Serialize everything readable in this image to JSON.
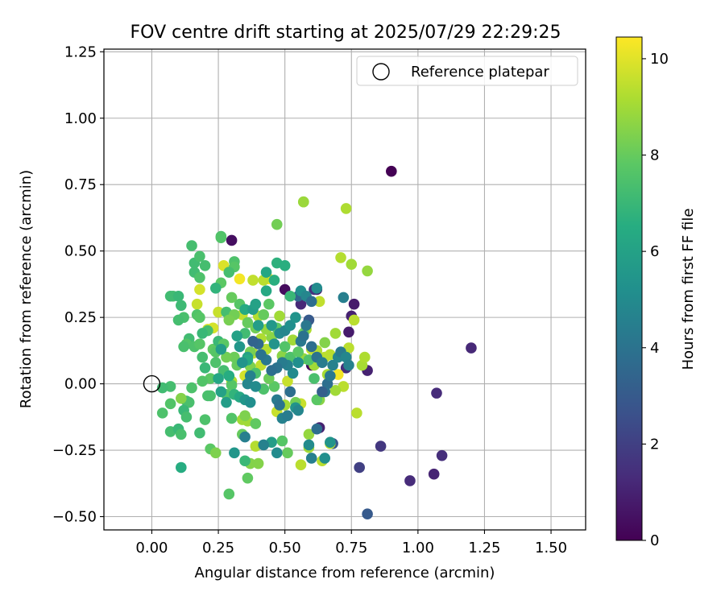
{
  "chart_data": {
    "type": "scatter",
    "title": "FOV centre drift starting at 2025/07/29 22:29:25",
    "xlabel": "Angular distance from reference (arcmin)",
    "ylabel": "Rotation from reference (arcmin)",
    "xlim": [
      -0.18,
      1.63
    ],
    "ylim": [
      -0.55,
      1.26
    ],
    "xticks": [
      0.0,
      0.25,
      0.5,
      0.75,
      1.0,
      1.25,
      1.5
    ],
    "xtick_labels": [
      "0.00",
      "0.25",
      "0.50",
      "0.75",
      "1.00",
      "1.25",
      "1.50"
    ],
    "yticks": [
      -0.5,
      -0.25,
      0.0,
      0.25,
      0.5,
      0.75,
      1.0,
      1.25
    ],
    "ytick_labels": [
      "−0.50",
      "−0.25",
      "0.00",
      "0.25",
      "0.50",
      "0.75",
      "1.00",
      "1.25"
    ],
    "grid": true,
    "legend": {
      "position": "top-right",
      "entries": [
        "Reference platepar"
      ]
    },
    "reference_point": {
      "x": 0.0,
      "y": 0.0,
      "marker": "open-circle"
    },
    "colorbar": {
      "label": "Hours from first FF file",
      "range": [
        0,
        10.45
      ],
      "ticks": [
        0,
        2,
        4,
        6,
        8,
        10
      ],
      "tick_labels": [
        "0",
        "2",
        "4",
        "6",
        "8",
        "10"
      ],
      "colormap": "viridis"
    },
    "points": [
      [
        1.2,
        0.135,
        1.2
      ],
      [
        1.07,
        -0.035,
        1.3
      ],
      [
        1.09,
        -0.27,
        1.4
      ],
      [
        1.06,
        -0.34,
        1.1
      ],
      [
        0.97,
        -0.365,
        1.3
      ],
      [
        0.86,
        -0.235,
        1.7
      ],
      [
        0.81,
        -0.49,
        3.0
      ],
      [
        0.78,
        -0.315,
        2.0
      ],
      [
        0.81,
        0.05,
        1.0
      ],
      [
        0.76,
        0.3,
        0.8
      ],
      [
        0.75,
        0.255,
        1.0
      ],
      [
        0.74,
        0.195,
        0.8
      ],
      [
        0.73,
        0.06,
        1.4
      ],
      [
        0.72,
        0.325,
        4.5
      ],
      [
        0.68,
        -0.225,
        3.0
      ],
      [
        0.63,
        -0.165,
        1.0
      ],
      [
        0.62,
        0.355,
        0.8
      ],
      [
        0.61,
        0.355,
        1.5
      ],
      [
        0.56,
        0.3,
        1.2
      ],
      [
        0.5,
        0.355,
        0.3
      ],
      [
        0.3,
        0.54,
        0.4
      ],
      [
        0.6,
        0.07,
        0.3
      ],
      [
        0.55,
        0.33,
        3.5
      ],
      [
        0.59,
        0.24,
        3.0
      ],
      [
        0.9,
        0.8,
        0.0
      ],
      [
        0.57,
        0.685,
        8.8
      ],
      [
        0.73,
        0.66,
        9.2
      ],
      [
        0.47,
        0.6,
        8.2
      ],
      [
        0.71,
        0.475,
        9.3
      ],
      [
        0.75,
        0.45,
        9.0
      ],
      [
        0.81,
        0.425,
        8.8
      ],
      [
        0.33,
        0.395,
        10.3
      ],
      [
        0.44,
        0.395,
        10.4
      ],
      [
        0.38,
        0.39,
        9.5
      ],
      [
        0.63,
        0.31,
        9.5
      ],
      [
        0.27,
        0.445,
        9.9
      ],
      [
        0.25,
        0.27,
        9.6
      ],
      [
        0.29,
        0.255,
        9.6
      ],
      [
        0.23,
        0.21,
        9.8
      ],
      [
        0.17,
        0.3,
        9.6
      ],
      [
        0.18,
        0.355,
        9.8
      ],
      [
        0.34,
        0.26,
        9.5
      ],
      [
        0.35,
        0.03,
        9.8
      ],
      [
        0.4,
        0.255,
        9.3
      ],
      [
        0.45,
        0.175,
        8.6
      ],
      [
        0.48,
        0.255,
        9.0
      ],
      [
        0.58,
        0.205,
        9.2
      ],
      [
        0.61,
        0.07,
        9.0
      ],
      [
        0.65,
        0.1,
        9.4
      ],
      [
        0.7,
        0.035,
        10.3
      ],
      [
        0.72,
        -0.01,
        9.4
      ],
      [
        0.74,
        0.135,
        9.4
      ],
      [
        0.76,
        0.24,
        9.4
      ],
      [
        0.79,
        0.07,
        9.1
      ],
      [
        0.8,
        0.1,
        9.2
      ],
      [
        0.77,
        -0.11,
        9.4
      ],
      [
        0.69,
        -0.025,
        9.0
      ],
      [
        0.66,
        0.035,
        9.1
      ],
      [
        0.47,
        -0.105,
        9.6
      ],
      [
        0.56,
        -0.075,
        9.6
      ],
      [
        0.51,
        0.01,
        9.6
      ],
      [
        0.59,
        -0.19,
        8.8
      ],
      [
        0.59,
        -0.24,
        9.0
      ],
      [
        0.56,
        -0.305,
        9.4
      ],
      [
        0.64,
        -0.29,
        9.4
      ],
      [
        0.67,
        -0.225,
        9.5
      ],
      [
        0.63,
        -0.06,
        8.6
      ],
      [
        0.62,
        0.125,
        9.2
      ],
      [
        0.65,
        0.155,
        8.5
      ],
      [
        0.69,
        0.19,
        9.0
      ],
      [
        0.43,
        0.13,
        9.3
      ],
      [
        0.41,
        0.17,
        9.2
      ],
      [
        0.41,
        0.07,
        9.5
      ],
      [
        0.38,
        0.115,
        9.4
      ],
      [
        0.39,
        -0.235,
        9.3
      ],
      [
        0.36,
        -0.14,
        9.0
      ],
      [
        0.34,
        -0.135,
        9.0
      ],
      [
        0.3,
        0.01,
        9.2
      ],
      [
        0.37,
        0.065,
        8.4
      ],
      [
        0.43,
        0.205,
        8.8
      ],
      [
        0.21,
        0.205,
        9.8
      ],
      [
        0.49,
        0.105,
        8.6
      ],
      [
        0.53,
        0.165,
        9.0
      ],
      [
        0.57,
        0.095,
        8.8
      ],
      [
        0.6,
        0.13,
        9.5
      ],
      [
        0.67,
        0.11,
        9.4
      ],
      [
        0.5,
        -0.08,
        9.1
      ],
      [
        0.37,
        -0.3,
        8.5
      ],
      [
        0.4,
        -0.3,
        8.5
      ],
      [
        0.42,
        0.39,
        9.4
      ],
      [
        0.15,
        0.52,
        7.3
      ],
      [
        0.26,
        0.555,
        7.5
      ],
      [
        0.16,
        0.455,
        7.2
      ],
      [
        0.18,
        0.48,
        7.4
      ],
      [
        0.2,
        0.445,
        7.3
      ],
      [
        0.16,
        0.42,
        7.2
      ],
      [
        0.18,
        0.4,
        7.5
      ],
      [
        0.31,
        0.46,
        7.5
      ],
      [
        0.31,
        0.44,
        7.7
      ],
      [
        0.29,
        0.42,
        7.3
      ],
      [
        0.26,
        0.38,
        7.8
      ],
      [
        0.26,
        0.55,
        7.6
      ],
      [
        0.08,
        0.33,
        7.4
      ],
      [
        0.07,
        0.33,
        7.2
      ],
      [
        0.1,
        0.33,
        7.0
      ],
      [
        0.11,
        0.295,
        7.1
      ],
      [
        0.12,
        0.25,
        7.4
      ],
      [
        0.1,
        0.24,
        7.3
      ],
      [
        0.17,
        0.26,
        7.6
      ],
      [
        0.18,
        0.25,
        7.7
      ],
      [
        0.21,
        0.2,
        7.3
      ],
      [
        0.19,
        0.19,
        7.0
      ],
      [
        0.14,
        0.17,
        7.2
      ],
      [
        0.13,
        0.15,
        7.6
      ],
      [
        0.12,
        0.14,
        7.4
      ],
      [
        0.16,
        0.14,
        7.5
      ],
      [
        0.18,
        0.15,
        7.7
      ],
      [
        0.23,
        0.13,
        7.9
      ],
      [
        0.24,
        0.12,
        7.7
      ],
      [
        0.19,
        0.1,
        7.3
      ],
      [
        0.2,
        0.06,
        7.0
      ],
      [
        0.24,
        0.08,
        7.5
      ],
      [
        0.27,
        0.05,
        7.3
      ],
      [
        0.22,
        0.02,
        7.8
      ],
      [
        0.19,
        0.01,
        7.6
      ],
      [
        0.15,
        -0.015,
        7.5
      ],
      [
        0.07,
        -0.01,
        7.3
      ],
      [
        0.04,
        -0.015,
        7.2
      ],
      [
        0.21,
        -0.045,
        7.4
      ],
      [
        0.22,
        -0.045,
        7.4
      ],
      [
        0.28,
        -0.04,
        7.6
      ],
      [
        0.07,
        -0.075,
        7.6
      ],
      [
        0.13,
        -0.065,
        7.2
      ],
      [
        0.14,
        -0.07,
        7.4
      ],
      [
        0.11,
        -0.055,
        8.5
      ],
      [
        0.04,
        -0.11,
        7.5
      ],
      [
        0.12,
        -0.1,
        7.0
      ],
      [
        0.13,
        -0.125,
        7.3
      ],
      [
        0.2,
        -0.135,
        7.5
      ],
      [
        0.3,
        -0.13,
        7.6
      ],
      [
        0.35,
        -0.12,
        8.4
      ],
      [
        0.39,
        -0.15,
        7.9
      ],
      [
        0.07,
        -0.18,
        7.3
      ],
      [
        0.1,
        -0.17,
        7.0
      ],
      [
        0.11,
        -0.19,
        7.4
      ],
      [
        0.18,
        -0.185,
        7.2
      ],
      [
        0.22,
        -0.245,
        7.8
      ],
      [
        0.24,
        -0.26,
        8.4
      ],
      [
        0.34,
        -0.19,
        8.0
      ],
      [
        0.35,
        -0.29,
        7.0
      ],
      [
        0.36,
        -0.355,
        7.9
      ],
      [
        0.29,
        -0.415,
        7.7
      ],
      [
        0.11,
        -0.315,
        6.5
      ],
      [
        0.49,
        -0.215,
        7.7
      ],
      [
        0.51,
        -0.26,
        8.0
      ],
      [
        0.47,
        0.455,
        6.7
      ],
      [
        0.5,
        0.445,
        6.6
      ],
      [
        0.46,
        0.39,
        6.6
      ],
      [
        0.57,
        0.685,
        8.9
      ],
      [
        0.28,
        0.27,
        7.3
      ],
      [
        0.33,
        0.3,
        7.7
      ],
      [
        0.3,
        0.325,
        8.0
      ],
      [
        0.31,
        0.26,
        8.2
      ],
      [
        0.29,
        0.24,
        8.3
      ],
      [
        0.36,
        0.23,
        8.0
      ],
      [
        0.39,
        0.21,
        8.2
      ],
      [
        0.37,
        0.12,
        8.3
      ],
      [
        0.31,
        0.1,
        8.1
      ],
      [
        0.32,
        0.07,
        8.0
      ],
      [
        0.28,
        0.1,
        8.2
      ],
      [
        0.25,
        0.16,
        7.0
      ],
      [
        0.27,
        0.15,
        7.8
      ],
      [
        0.35,
        0.19,
        7.2
      ],
      [
        0.42,
        0.26,
        8.0
      ],
      [
        0.44,
        0.3,
        7.8
      ],
      [
        0.52,
        0.33,
        7.0
      ],
      [
        0.47,
        0.21,
        7.8
      ],
      [
        0.5,
        0.14,
        7.6
      ],
      [
        0.52,
        0.1,
        7.5
      ],
      [
        0.55,
        0.12,
        7.8
      ],
      [
        0.57,
        0.19,
        8.0
      ],
      [
        0.59,
        0.09,
        7.5
      ],
      [
        0.61,
        0.02,
        7.4
      ],
      [
        0.62,
        -0.06,
        7.8
      ],
      [
        0.54,
        -0.07,
        8.2
      ],
      [
        0.46,
        -0.01,
        7.8
      ],
      [
        0.44,
        0.02,
        8.1
      ],
      [
        0.42,
        -0.02,
        7.5
      ],
      [
        0.39,
        0.04,
        7.4
      ],
      [
        0.3,
        -0.005,
        7.7
      ],
      [
        0.31,
        -0.04,
        6.8
      ],
      [
        0.29,
        0.03,
        6.5
      ],
      [
        0.33,
        -0.05,
        6.3
      ],
      [
        0.35,
        -0.06,
        5.5
      ],
      [
        0.37,
        -0.07,
        5.2
      ],
      [
        0.36,
        0.1,
        6.0
      ],
      [
        0.36,
        0.09,
        6.4
      ],
      [
        0.34,
        0.08,
        5.4
      ],
      [
        0.32,
        0.18,
        6.0
      ],
      [
        0.33,
        0.14,
        5.5
      ],
      [
        0.35,
        0.28,
        6.4
      ],
      [
        0.38,
        0.28,
        5.8
      ],
      [
        0.39,
        0.3,
        6.0
      ],
      [
        0.43,
        0.35,
        6.3
      ],
      [
        0.4,
        0.22,
        5.8
      ],
      [
        0.45,
        0.22,
        5.6
      ],
      [
        0.46,
        0.15,
        5.4
      ],
      [
        0.48,
        0.19,
        5.0
      ],
      [
        0.5,
        0.2,
        4.8
      ],
      [
        0.52,
        0.22,
        5.2
      ],
      [
        0.54,
        0.25,
        5.4
      ],
      [
        0.56,
        0.35,
        5.2
      ],
      [
        0.58,
        0.33,
        4.8
      ],
      [
        0.6,
        0.31,
        3.8
      ],
      [
        0.62,
        0.36,
        5.0
      ],
      [
        0.55,
        0.08,
        5.2
      ],
      [
        0.53,
        0.04,
        5.0
      ],
      [
        0.51,
        0.07,
        4.6
      ],
      [
        0.49,
        0.08,
        4.4
      ],
      [
        0.47,
        0.06,
        4.0
      ],
      [
        0.45,
        0.05,
        3.8
      ],
      [
        0.43,
        0.09,
        4.2
      ],
      [
        0.41,
        0.11,
        4.0
      ],
      [
        0.4,
        0.15,
        3.6
      ],
      [
        0.38,
        0.16,
        3.4
      ],
      [
        0.37,
        0.03,
        4.6
      ],
      [
        0.36,
        0.0,
        4.8
      ],
      [
        0.39,
        -0.01,
        5.0
      ],
      [
        0.47,
        -0.06,
        4.4
      ],
      [
        0.48,
        -0.08,
        4.0
      ],
      [
        0.49,
        -0.13,
        4.6
      ],
      [
        0.51,
        -0.12,
        4.4
      ],
      [
        0.52,
        -0.03,
        3.8
      ],
      [
        0.54,
        -0.09,
        5.4
      ],
      [
        0.55,
        -0.1,
        4.8
      ],
      [
        0.56,
        0.16,
        4.2
      ],
      [
        0.57,
        0.18,
        3.9
      ],
      [
        0.58,
        0.22,
        4.2
      ],
      [
        0.6,
        0.14,
        3.8
      ],
      [
        0.62,
        0.1,
        4.0
      ],
      [
        0.64,
        0.08,
        4.4
      ],
      [
        0.66,
        0.0,
        3.8
      ],
      [
        0.65,
        -0.03,
        4.0
      ],
      [
        0.67,
        0.03,
        4.2
      ],
      [
        0.68,
        0.07,
        4.6
      ],
      [
        0.7,
        0.1,
        4.8
      ],
      [
        0.71,
        0.12,
        4.3
      ],
      [
        0.73,
        0.1,
        4.8
      ],
      [
        0.74,
        0.07,
        4.6
      ],
      [
        0.64,
        -0.03,
        3.2
      ],
      [
        0.59,
        -0.23,
        5.0
      ],
      [
        0.6,
        -0.28,
        4.5
      ],
      [
        0.62,
        -0.17,
        3.8
      ],
      [
        0.65,
        -0.28,
        5.2
      ],
      [
        0.67,
        -0.22,
        5.4
      ],
      [
        0.45,
        -0.22,
        5.8
      ],
      [
        0.47,
        -0.26,
        5.0
      ],
      [
        0.42,
        -0.23,
        4.6
      ],
      [
        0.35,
        -0.2,
        4.5
      ],
      [
        0.31,
        -0.26,
        5.5
      ],
      [
        0.28,
        -0.07,
        5.8
      ],
      [
        0.26,
        -0.03,
        6.0
      ],
      [
        0.25,
        0.02,
        6.2
      ],
      [
        0.26,
        0.13,
        5.8
      ],
      [
        0.24,
        0.36,
        6.8
      ],
      [
        0.43,
        0.42,
        6.2
      ]
    ]
  }
}
